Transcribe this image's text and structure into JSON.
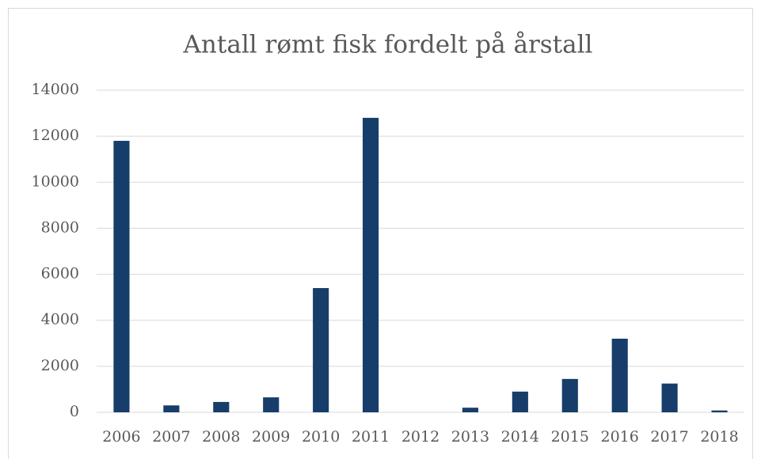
{
  "chart_data": {
    "type": "bar",
    "title": "Antall rømt fisk fordelt på årstall",
    "categories": [
      "2006",
      "2007",
      "2008",
      "2009",
      "2010",
      "2011",
      "2012",
      "2013",
      "2014",
      "2015",
      "2016",
      "2017",
      "2018"
    ],
    "values": [
      11800,
      300,
      450,
      650,
      5400,
      12800,
      0,
      200,
      900,
      1450,
      3200,
      1250,
      80
    ],
    "color": "#173d6a",
    "ylim": [
      0,
      14000
    ],
    "yticks": [
      0,
      2000,
      4000,
      6000,
      8000,
      10000,
      12000,
      14000
    ],
    "grid": true
  }
}
